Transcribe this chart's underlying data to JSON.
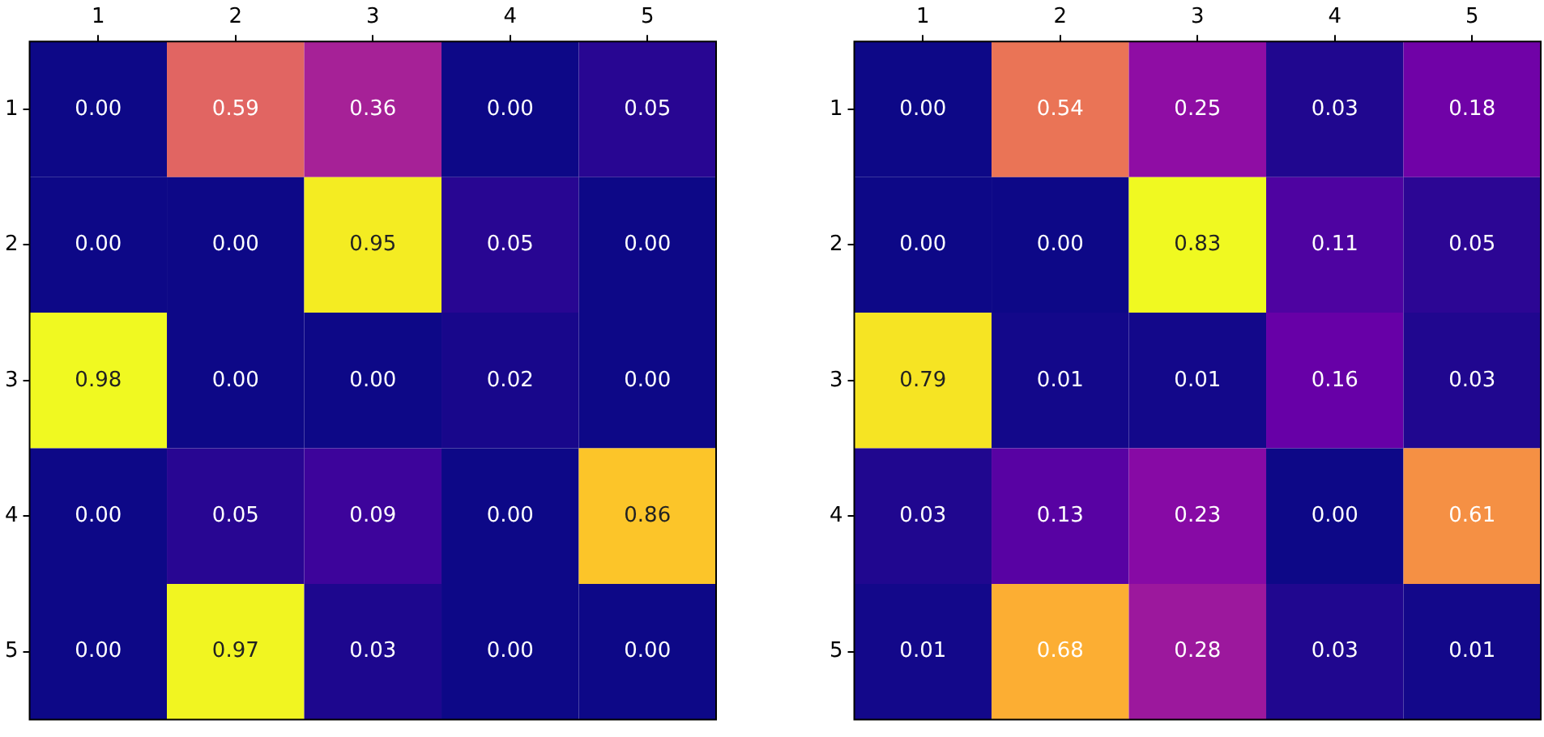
{
  "chart_data": [
    {
      "type": "heatmap",
      "categories": [
        "1",
        "2",
        "3",
        "4",
        "5"
      ],
      "y_categories": [
        "1",
        "2",
        "3",
        "4",
        "5"
      ],
      "cells": [
        [
          0.0,
          0.59,
          0.36,
          0.0,
          0.05
        ],
        [
          0.0,
          0.0,
          0.95,
          0.05,
          0.0
        ],
        [
          0.98,
          0.0,
          0.0,
          0.02,
          0.0
        ],
        [
          0.0,
          0.05,
          0.09,
          0.0,
          0.86
        ],
        [
          0.0,
          0.97,
          0.03,
          0.0,
          0.0
        ]
      ],
      "cell_labels": [
        [
          "0.00",
          "0.59",
          "0.36",
          "0.00",
          "0.05"
        ],
        [
          "0.00",
          "0.00",
          "0.95",
          "0.05",
          "0.00"
        ],
        [
          "0.98",
          "0.00",
          "0.00",
          "0.02",
          "0.00"
        ],
        [
          "0.00",
          "0.05",
          "0.09",
          "0.00",
          "0.86"
        ],
        [
          "0.00",
          "0.97",
          "0.03",
          "0.00",
          "0.00"
        ]
      ]
    },
    {
      "type": "heatmap",
      "categories": [
        "1",
        "2",
        "3",
        "4",
        "5"
      ],
      "y_categories": [
        "1",
        "2",
        "3",
        "4",
        "5"
      ],
      "cells": [
        [
          0.0,
          0.54,
          0.25,
          0.03,
          0.18
        ],
        [
          0.0,
          0.0,
          0.83,
          0.11,
          0.05
        ],
        [
          0.79,
          0.01,
          0.01,
          0.16,
          0.03
        ],
        [
          0.03,
          0.13,
          0.23,
          0.0,
          0.61
        ],
        [
          0.01,
          0.68,
          0.28,
          0.03,
          0.01
        ]
      ],
      "cell_labels": [
        [
          "0.00",
          "0.54",
          "0.25",
          "0.03",
          "0.18"
        ],
        [
          "0.00",
          "0.00",
          "0.83",
          "0.11",
          "0.05"
        ],
        [
          "0.79",
          "0.01",
          "0.01",
          "0.16",
          "0.03"
        ],
        [
          "0.03",
          "0.13",
          "0.23",
          "0.00",
          "0.61"
        ],
        [
          "0.01",
          "0.68",
          "0.28",
          "0.03",
          "0.01"
        ]
      ]
    }
  ]
}
